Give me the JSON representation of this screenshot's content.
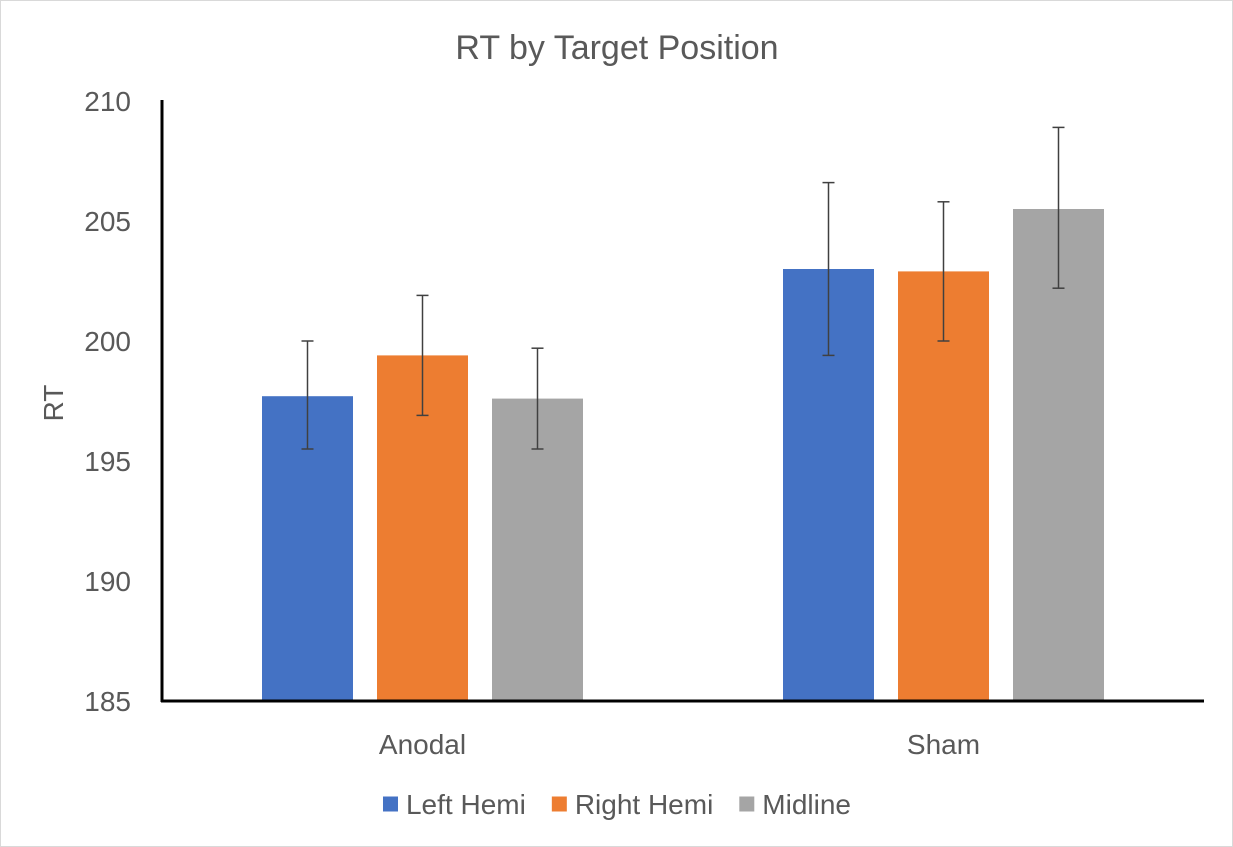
{
  "chart_data": {
    "type": "bar",
    "title": "RT by Target Position",
    "xlabel": "",
    "ylabel": "RT",
    "categories": [
      "Anodal",
      "Sham"
    ],
    "ylim": [
      185,
      210
    ],
    "yticks": [
      185,
      190,
      195,
      200,
      205,
      210
    ],
    "grid": false,
    "legend_position": "bottom",
    "series": [
      {
        "name": "Left Hemi",
        "color": "#4472C4",
        "values": [
          197.7,
          203.0
        ],
        "error_low": [
          195.5,
          199.4
        ],
        "error_high": [
          200.0,
          206.6
        ]
      },
      {
        "name": "Right Hemi",
        "color": "#ED7D31",
        "values": [
          199.4,
          202.9
        ],
        "error_low": [
          196.9,
          200.0
        ],
        "error_high": [
          201.9,
          205.8
        ]
      },
      {
        "name": "Midline",
        "color": "#A5A5A5",
        "values": [
          197.6,
          205.5
        ],
        "error_low": [
          195.5,
          202.2
        ],
        "error_high": [
          199.7,
          208.9
        ]
      }
    ]
  }
}
